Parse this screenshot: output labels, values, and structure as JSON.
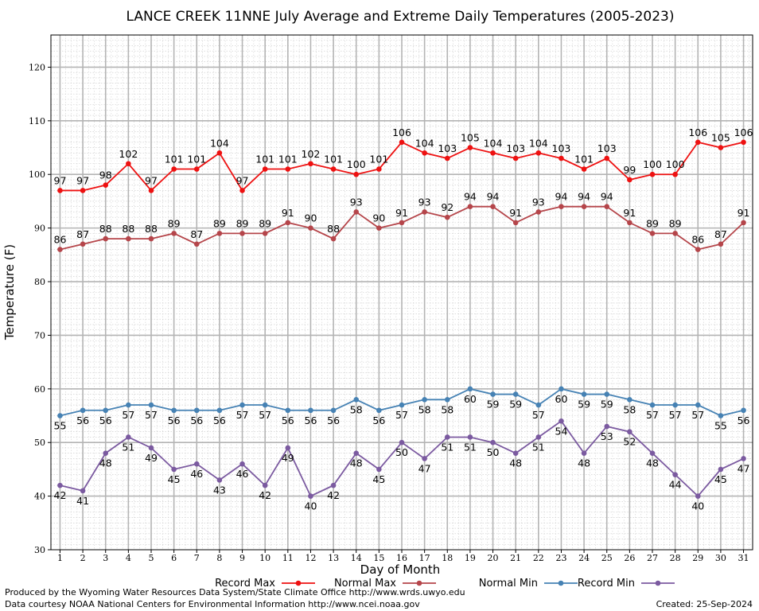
{
  "chart_data": {
    "type": "line",
    "title": "LANCE CREEK 11NNE July Average and Extreme Daily Temperatures (2005-2023)",
    "xlabel": "Day of Month",
    "ylabel": "Temperature (F)",
    "ylim": [
      30,
      126
    ],
    "yticks": [
      30,
      40,
      50,
      60,
      70,
      80,
      90,
      100,
      110,
      120
    ],
    "x": [
      1,
      2,
      3,
      4,
      5,
      6,
      7,
      8,
      9,
      10,
      11,
      12,
      13,
      14,
      15,
      16,
      17,
      18,
      19,
      20,
      21,
      22,
      23,
      24,
      25,
      26,
      27,
      28,
      29,
      30,
      31
    ],
    "grid": true,
    "legend_position": "bottom",
    "series": [
      {
        "name": "Record Max",
        "color": "#ee1111",
        "label_position": "above",
        "values": [
          97,
          97,
          98,
          102,
          97,
          101,
          101,
          104,
          97,
          101,
          101,
          102,
          101,
          100,
          101,
          106,
          104,
          103,
          105,
          104,
          103,
          104,
          103,
          101,
          103,
          99,
          100,
          100,
          106,
          105,
          106
        ]
      },
      {
        "name": "Normal Max",
        "color": "#b5454a",
        "label_position": "above",
        "values": [
          86,
          87,
          88,
          88,
          88,
          89,
          87,
          89,
          89,
          89,
          91,
          90,
          88,
          93,
          90,
          91,
          93,
          92,
          94,
          94,
          91,
          93,
          94,
          94,
          94,
          91,
          89,
          89,
          86,
          87,
          91
        ]
      },
      {
        "name": "Normal Min",
        "color": "#4682b4",
        "label_position": "below",
        "values": [
          55,
          56,
          56,
          57,
          57,
          56,
          56,
          56,
          57,
          57,
          56,
          56,
          56,
          58,
          56,
          57,
          58,
          58,
          60,
          59,
          59,
          57,
          60,
          59,
          59,
          58,
          57,
          57,
          57,
          55,
          56
        ]
      },
      {
        "name": "Record Min",
        "color": "#7b5aa0",
        "label_position": "below",
        "values": [
          42,
          41,
          48,
          51,
          49,
          45,
          46,
          43,
          46,
          42,
          49,
          40,
          42,
          48,
          45,
          50,
          47,
          51,
          51,
          50,
          48,
          51,
          54,
          48,
          53,
          52,
          48,
          44,
          40,
          45,
          47
        ]
      }
    ]
  },
  "footer": {
    "line1": "Produced by the Wyoming Water Resources Data System/State Climate Office http://www.wrds.uwyo.edu",
    "line2": "Data courtesy NOAA National Centers for Environmental Information http://www.ncei.noaa.gov",
    "created": "Created:  25-Sep-2024"
  }
}
